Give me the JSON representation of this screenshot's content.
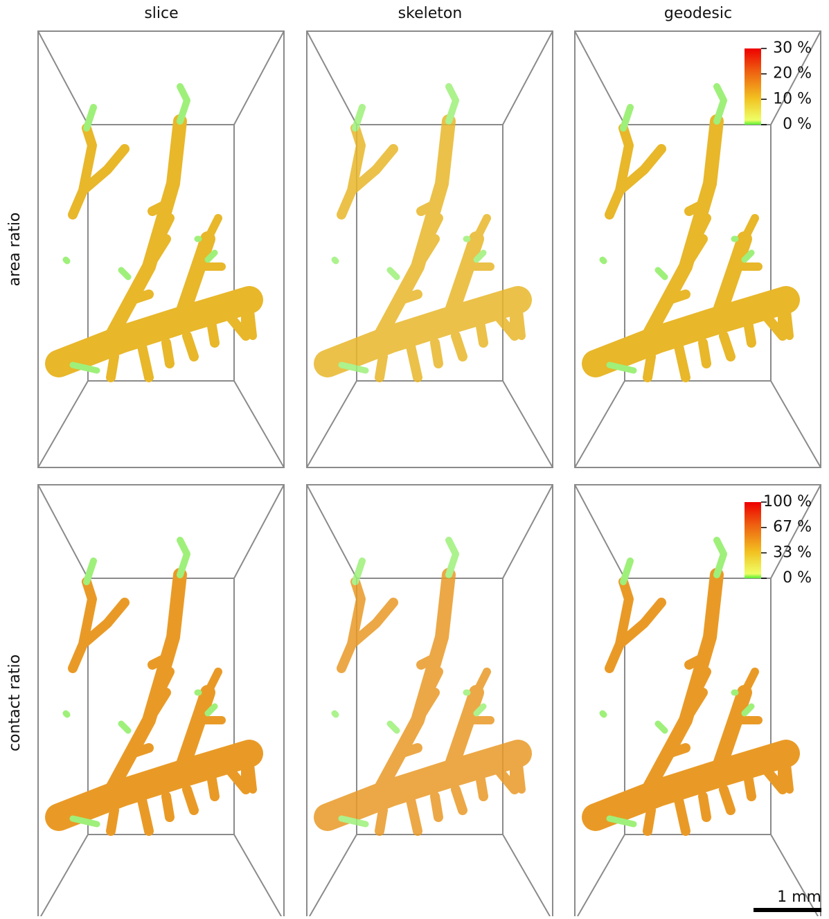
{
  "columns": [
    "slice",
    "skeleton",
    "geodesic"
  ],
  "rows": [
    "area ratio",
    "contact ratio"
  ],
  "colorbars": [
    {
      "labels": [
        "30 %",
        "20 %",
        "10 %",
        "0 %"
      ]
    },
    {
      "labels": [
        "100 %",
        "67 %",
        "33 %",
        "0 %"
      ]
    }
  ],
  "scale_bar": "1 mm"
}
